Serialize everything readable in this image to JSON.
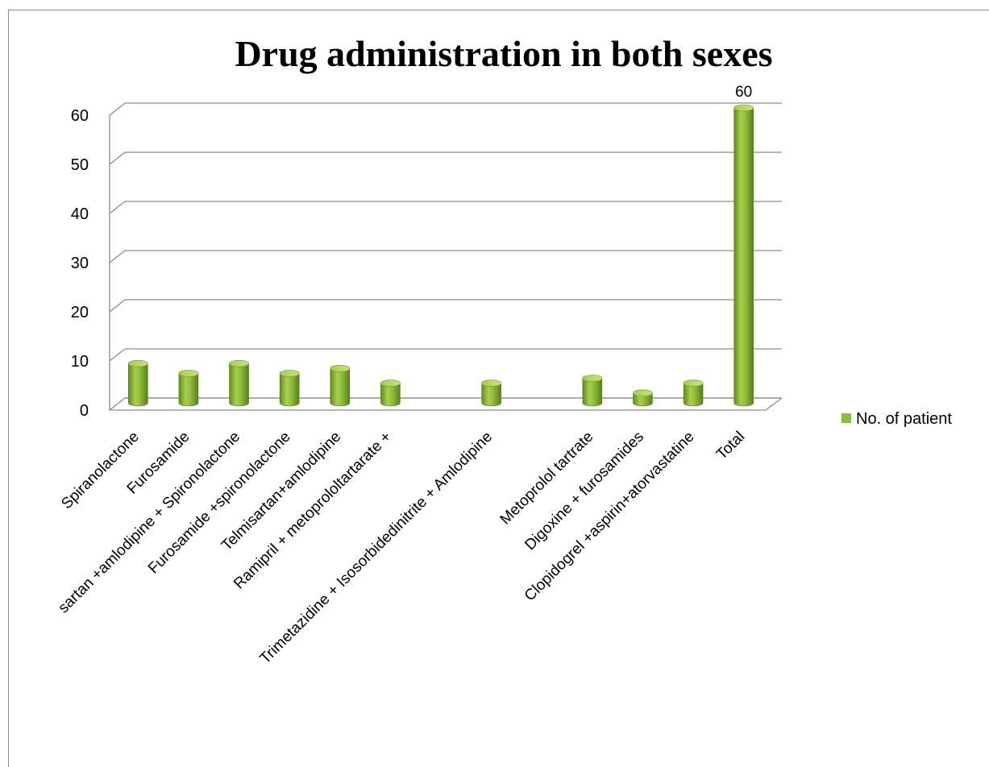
{
  "chart_data": {
    "type": "bar",
    "title": "Drug administration in both sexes",
    "categories": [
      "Spiranolactone",
      "Furosamide",
      "sartan +amlodipine + Spironolactone",
      "Furosamide +spironolactone",
      "Telmisartan+amlodipine",
      "Ramipril + metoprololtartarate +",
      "",
      "Trimetazidine + Isosorbidedinitrite + Amlodipine",
      "",
      "Metoprolol tartrate",
      "Digoxine + furosamides",
      "Clopidogrel +aspirin+atorvastatine",
      "Total"
    ],
    "series": [
      {
        "name": "No. of patient",
        "values": [
          8,
          6,
          8,
          6,
          7,
          4,
          0,
          4,
          0,
          5,
          2,
          4,
          60
        ],
        "color": "#8fbc3a"
      }
    ],
    "data_labels": [
      null,
      null,
      null,
      null,
      null,
      null,
      null,
      null,
      null,
      null,
      null,
      null,
      "60"
    ],
    "yticks": [
      "0",
      "10",
      "20",
      "30",
      "40",
      "50",
      "60"
    ],
    "ylim": [
      0,
      60
    ],
    "grid": true,
    "legend_position": "right",
    "style": "3d-cylinder"
  }
}
